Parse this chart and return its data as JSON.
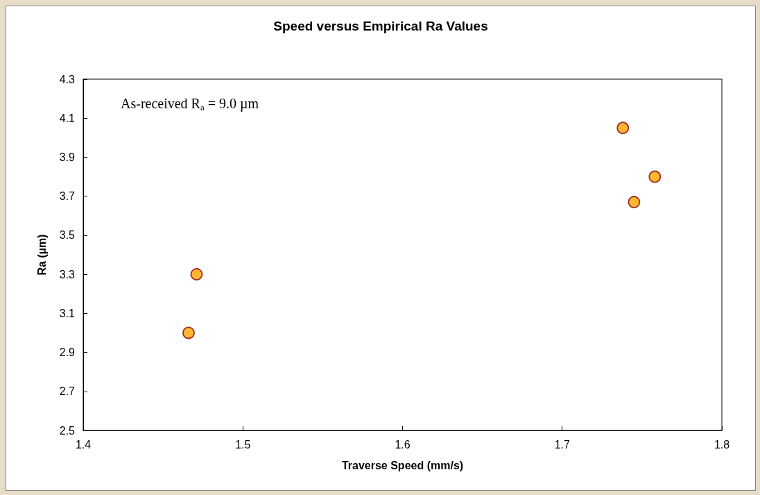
{
  "chart_data": {
    "type": "scatter",
    "title": "Speed versus Empirical Ra Values",
    "xlabel": "Traverse Speed (mm/s)",
    "ylabel": "Ra (µm)",
    "annotations": [
      "As-received R$_{a}$ = 9.0 µm"
    ],
    "x": [
      1.466,
      1.471,
      1.738,
      1.745,
      1.758
    ],
    "series": [
      {
        "color": "#ffa500",
        "values": [
          3.0,
          3.3,
          4.05,
          3.67,
          3.8
        ]
      }
    ],
    "xlim": [
      1.4,
      1.8
    ],
    "xticks": [
      1.4,
      1.5,
      1.6,
      1.7,
      1.8
    ],
    "ylim": [
      2.5,
      4.3
    ],
    "yticks": [
      2.5,
      2.7,
      2.9,
      3.1,
      3.3,
      3.5,
      3.7,
      3.9,
      4.1,
      4.3
    ],
    "grid": false,
    "marker": "circle"
  }
}
